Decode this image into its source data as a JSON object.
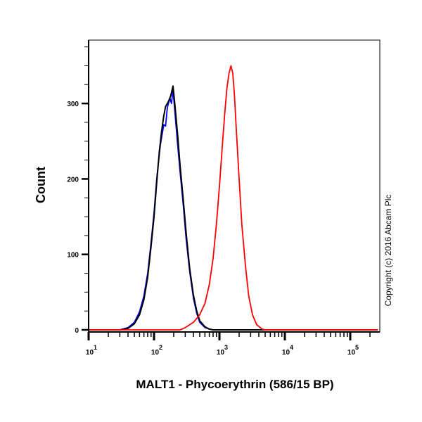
{
  "chart_data": {
    "type": "line",
    "title": "",
    "xlabel": "MALT1 - Phycoerythrin (586/15 BP)",
    "ylabel": "Count",
    "x_scale": "log",
    "xlim": [
      10,
      262144
    ],
    "ylim": [
      0,
      384
    ],
    "x_ticks": [
      {
        "base": "10",
        "exp": "1",
        "value": 10
      },
      {
        "base": "10",
        "exp": "2",
        "value": 100
      },
      {
        "base": "10",
        "exp": "3",
        "value": 1000
      },
      {
        "base": "10",
        "exp": "4",
        "value": 10000
      },
      {
        "base": "10",
        "exp": "5",
        "value": 100000
      }
    ],
    "y_ticks": [
      0,
      100,
      200,
      300
    ],
    "y_tick_labels": [
      "0",
      "100",
      "200",
      "300"
    ],
    "grid": false,
    "legend": "none",
    "annotation": "Copyright (c) 2016 Abcam Plc",
    "series": [
      {
        "color": "#0000ff",
        "x": [
          10,
          30,
          40,
          50,
          60,
          70,
          80,
          90,
          100,
          110,
          125,
          141,
          150,
          160,
          175,
          185,
          195,
          210,
          230,
          250,
          280,
          310,
          350,
          400,
          450,
          500,
          600,
          700,
          800,
          262144
        ],
        "y": [
          0,
          0,
          3,
          10,
          24,
          45,
          75,
          115,
          155,
          200,
          245,
          272,
          270,
          295,
          307,
          300,
          318,
          285,
          245,
          210,
          165,
          120,
          78,
          42,
          22,
          10,
          3,
          1,
          0,
          0
        ]
      },
      {
        "color": "#000000",
        "x": [
          10,
          30,
          40,
          50,
          60,
          70,
          80,
          90,
          100,
          110,
          120,
          130,
          140,
          150,
          165,
          180,
          195,
          210,
          230,
          250,
          280,
          310,
          350,
          400,
          450,
          500,
          600,
          700,
          800,
          262144
        ],
        "y": [
          0,
          0,
          2,
          8,
          20,
          40,
          70,
          110,
          150,
          195,
          235,
          262,
          282,
          296,
          302,
          310,
          323,
          295,
          258,
          218,
          172,
          128,
          82,
          46,
          25,
          12,
          4,
          1,
          0,
          0
        ]
      },
      {
        "color": "#ff0000",
        "x": [
          10,
          250,
          300,
          400,
          500,
          600,
          700,
          800,
          900,
          1000,
          1100,
          1200,
          1300,
          1400,
          1500,
          1600,
          1700,
          1800,
          2000,
          2200,
          2500,
          2800,
          3200,
          3700,
          4500,
          5000,
          262144
        ],
        "y": [
          0,
          0,
          3,
          10,
          20,
          35,
          60,
          95,
          140,
          190,
          240,
          285,
          320,
          340,
          350,
          340,
          310,
          270,
          200,
          140,
          85,
          45,
          20,
          7,
          1,
          0,
          0
        ]
      }
    ]
  }
}
